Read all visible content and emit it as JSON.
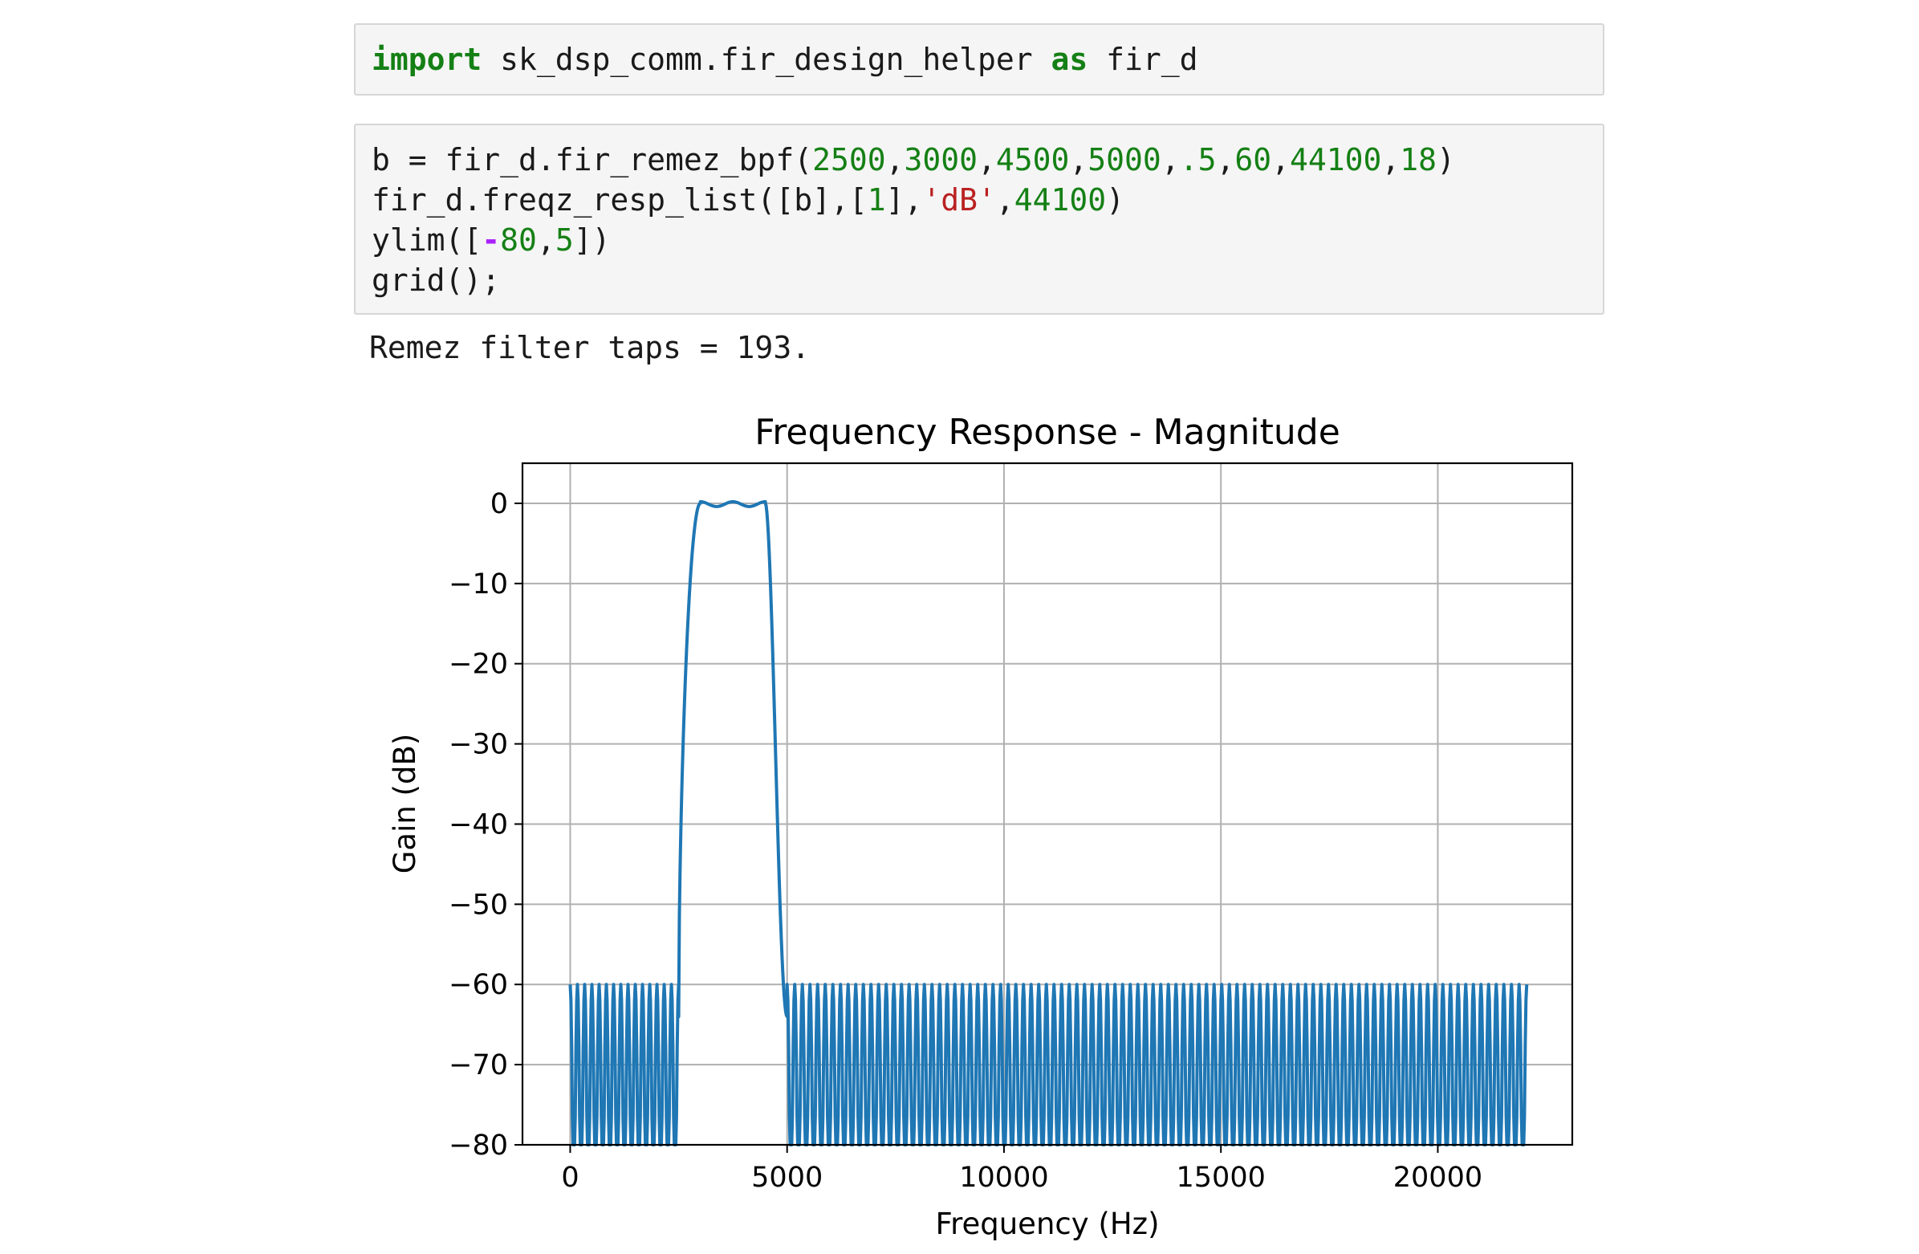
{
  "cells": {
    "import_cell": {
      "tokens": [
        {
          "text": "import",
          "cls": "kw"
        },
        {
          "text": " sk_dsp_comm.fir_design_helper ",
          "cls": ""
        },
        {
          "text": "as",
          "cls": "kw"
        },
        {
          "text": " fir_d",
          "cls": ""
        }
      ]
    },
    "code_cell": {
      "lines": [
        [
          {
            "text": "b = fir_d.fir_remez_bpf(",
            "cls": ""
          },
          {
            "text": "2500",
            "cls": "num"
          },
          {
            "text": ",",
            "cls": ""
          },
          {
            "text": "3000",
            "cls": "num"
          },
          {
            "text": ",",
            "cls": ""
          },
          {
            "text": "4500",
            "cls": "num"
          },
          {
            "text": ",",
            "cls": ""
          },
          {
            "text": "5000",
            "cls": "num"
          },
          {
            "text": ",",
            "cls": ""
          },
          {
            "text": ".5",
            "cls": "num"
          },
          {
            "text": ",",
            "cls": ""
          },
          {
            "text": "60",
            "cls": "num"
          },
          {
            "text": ",",
            "cls": ""
          },
          {
            "text": "44100",
            "cls": "num"
          },
          {
            "text": ",",
            "cls": ""
          },
          {
            "text": "18",
            "cls": "num"
          },
          {
            "text": ")",
            "cls": ""
          }
        ],
        [
          {
            "text": "fir_d.freqz_resp_list([b],[",
            "cls": ""
          },
          {
            "text": "1",
            "cls": "num"
          },
          {
            "text": "],",
            "cls": ""
          },
          {
            "text": "'dB'",
            "cls": "str"
          },
          {
            "text": ",",
            "cls": ""
          },
          {
            "text": "44100",
            "cls": "num"
          },
          {
            "text": ")",
            "cls": ""
          }
        ],
        [
          {
            "text": "ylim([",
            "cls": ""
          },
          {
            "text": "-",
            "cls": "op"
          },
          {
            "text": "80",
            "cls": "num"
          },
          {
            "text": ",",
            "cls": ""
          },
          {
            "text": "5",
            "cls": "num"
          },
          {
            "text": "])",
            "cls": ""
          }
        ],
        [
          {
            "text": "grid();",
            "cls": ""
          }
        ]
      ]
    },
    "output": "Remez filter taps = 193."
  },
  "colors": {
    "line": "#1f77b4",
    "grid": "#b0b0b0",
    "keyword": "#158015",
    "number": "#158015",
    "string": "#ba2121",
    "operator": "#aa22ff"
  },
  "chart_data": {
    "type": "line",
    "title": "Frequency Response - Magnitude",
    "xlabel": "Frequency (Hz)",
    "ylabel": "Gain (dB)",
    "xlim": [
      -1100,
      23100
    ],
    "ylim": [
      -80,
      5
    ],
    "xticks": [
      0,
      5000,
      10000,
      15000,
      20000
    ],
    "xtick_labels": [
      "0",
      "5000",
      "10000",
      "15000",
      "20000"
    ],
    "yticks": [
      0,
      -10,
      -20,
      -30,
      -40,
      -50,
      -60,
      -70,
      -80
    ],
    "ytick_labels": [
      "0",
      "−10",
      "−20",
      "−30",
      "−40",
      "−50",
      "−60",
      "−70",
      "−80"
    ],
    "grid": true,
    "series": [
      {
        "x_range": [
          0,
          22050
        ],
        "passband": [
          3000,
          4500
        ],
        "passband_ripple_db": 0.5,
        "stopband_lower_edge": 2500,
        "stopband_upper_edge": 5000,
        "stopband_peak_db": -60,
        "stopband_floor_db": -80,
        "lower_stopband_lobes": 15,
        "upper_stopband_lobes": 97
      }
    ]
  }
}
